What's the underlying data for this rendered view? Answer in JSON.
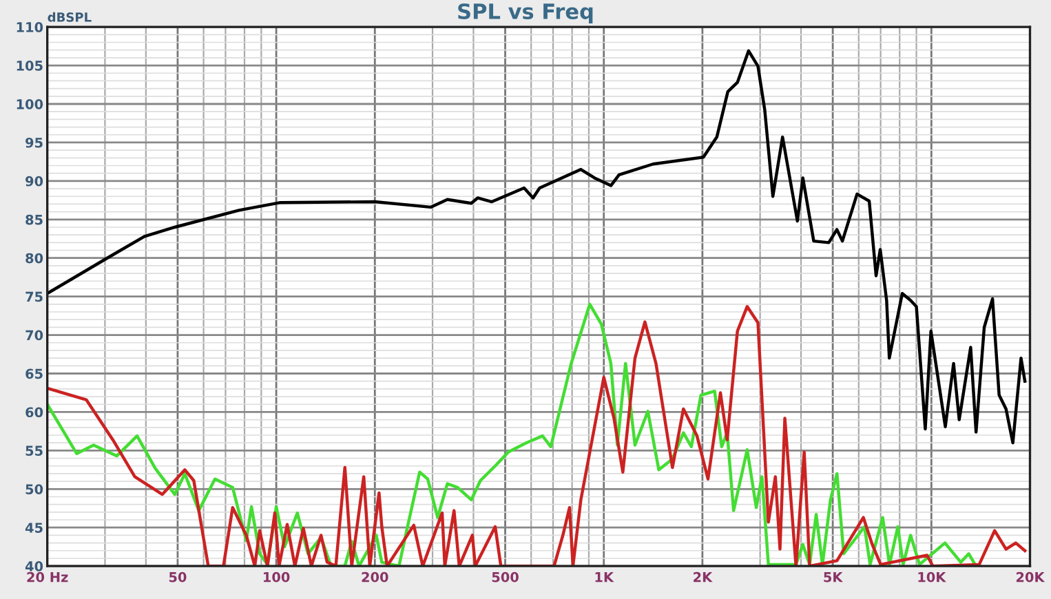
{
  "chart_data": {
    "type": "line",
    "title": "SPL vs Freq",
    "ylabel": "dBSPL",
    "log": "x",
    "grid": true,
    "marker": "none",
    "line_style": "solid",
    "xlim": [
      20,
      20000
    ],
    "ylim": [
      40,
      110
    ],
    "xticks": [
      {
        "value": 20,
        "label": "20 Hz"
      },
      50,
      100,
      200,
      500,
      {
        "value": 1000,
        "label": "1K"
      },
      {
        "value": 2000,
        "label": "2K"
      },
      {
        "value": 5000,
        "label": "5K"
      },
      {
        "value": 10000,
        "label": "10K"
      },
      {
        "value": 20000,
        "label": "20K"
      }
    ],
    "yticks": [
      40,
      45,
      50,
      55,
      60,
      65,
      70,
      75,
      80,
      85,
      90,
      95,
      100,
      105,
      110
    ],
    "series": [
      {
        "color": "#000000",
        "x": [
          20,
          30.5,
          39.6,
          49,
          77,
          103,
          200,
          296,
          333,
          394,
          412,
          455,
          571,
          608,
          637,
          851,
          937,
          1051,
          1113,
          1414,
          2014,
          2213,
          2391,
          2558,
          2767,
          2955,
          3100,
          3282,
          3513,
          3900,
          4052,
          4373,
          4860,
          5148,
          5350,
          5930,
          6460,
          6780,
          6980,
          7300,
          7440,
          8150,
          8640,
          9000,
          9580,
          9970,
          11030,
          11690,
          12160,
          13180,
          13690,
          14500,
          15370,
          16100,
          16900,
          17730,
          18780,
          19300
        ],
        "values": [
          75.4,
          80,
          82.8,
          84,
          86.2,
          87.2,
          87.3,
          86.6,
          87.6,
          87.1,
          87.8,
          87.3,
          89.1,
          87.8,
          89.1,
          91.5,
          90.4,
          89.4,
          90.8,
          92.2,
          93.1,
          95.7,
          101.6,
          102.8,
          106.9,
          104.9,
          99.2,
          88.0,
          95.7,
          84.8,
          90.4,
          82.2,
          82.0,
          83.7,
          82.2,
          88.3,
          87.4,
          77.7,
          81.1,
          74.5,
          67.0,
          75.4,
          74.5,
          73.7,
          57.8,
          70.5,
          58.1,
          66.3,
          59.0,
          68.4,
          57.4,
          71.0,
          74.7,
          62.2,
          60.4,
          56.0,
          67.0,
          64.0
        ]
      },
      {
        "color": "#44dd33",
        "x": [
          20,
          24.6,
          27.7,
          32.6,
          37.6,
          42.7,
          49,
          52.6,
          58,
          65,
          73.6,
          81,
          84,
          89,
          94,
          100,
          106,
          116,
          125,
          137,
          147,
          162,
          170,
          179,
          202,
          210,
          237,
          251,
          274,
          290,
          311,
          333,
          358,
          394,
          420,
          466,
          511,
          580,
          650,
          689,
          795,
          906,
          983,
          1051,
          1100,
          1165,
          1245,
          1363,
          1472,
          1620,
          1750,
          1850,
          1980,
          2180,
          2290,
          2380,
          2490,
          2740,
          2920,
          3040,
          3180,
          3860,
          4050,
          4250,
          4450,
          4650,
          4920,
          5150,
          5400,
          6250,
          6500,
          7100,
          7450,
          7900,
          8200,
          8640,
          9200,
          11000,
          12300,
          13000,
          13600
        ],
        "values": [
          61.0,
          54.6,
          55.7,
          54.3,
          56.9,
          52.7,
          49.3,
          52.0,
          47.2,
          51.3,
          50.2,
          43.3,
          47.7,
          41.6,
          40.2,
          47.7,
          42.5,
          46.9,
          41.6,
          43.7,
          40,
          40,
          43.2,
          40,
          44.0,
          40.5,
          40,
          44.9,
          52.2,
          51.3,
          46.3,
          50.7,
          50.2,
          48.6,
          51.1,
          53.0,
          54.8,
          56.0,
          56.9,
          55.5,
          66.3,
          74.0,
          71.4,
          66.3,
          55.7,
          66.3,
          55.7,
          60.1,
          52.5,
          53.9,
          57.3,
          55.5,
          62.2,
          62.7,
          55.5,
          57.3,
          47.2,
          55.1,
          47.6,
          51.6,
          40.2,
          40.2,
          42.8,
          40.2,
          46.7,
          40.2,
          48.6,
          52.0,
          41.6,
          45.1,
          40.2,
          46.3,
          40.2,
          45.1,
          40.2,
          44.0,
          40.2,
          43.0,
          40.5,
          41.6,
          40.2
        ]
      },
      {
        "color": "#cc2222",
        "x": [
          20,
          26.3,
          31.7,
          37,
          44.9,
          52.6,
          56,
          62,
          69,
          73.6,
          81,
          86,
          89,
          94,
          99,
          102,
          108,
          114,
          121,
          128,
          137,
          143,
          152,
          162,
          170,
          185,
          193,
          206,
          210,
          218,
          263,
          280,
          321,
          327,
          349,
          362,
          397,
          405,
          466,
          485,
          705,
          750,
          786,
          805,
          851,
          1000,
          1074,
          1143,
          1245,
          1335,
          1443,
          1620,
          1750,
          1925,
          2080,
          2270,
          2380,
          2558,
          2740,
          2955,
          3180,
          3340,
          3450,
          3570,
          3860,
          4090,
          4250,
          5150,
          6200,
          6600,
          7000,
          9700,
          10100,
          14000,
          15600,
          16900,
          18100,
          19300
        ],
        "values": [
          63.1,
          61.6,
          56.4,
          51.6,
          49.3,
          52.5,
          51.1,
          40,
          40,
          47.6,
          44.0,
          40,
          44.6,
          40,
          46.9,
          40,
          45.4,
          40,
          44.9,
          40,
          44.0,
          40.5,
          40,
          52.8,
          40,
          51.6,
          40,
          49.5,
          45.1,
          40,
          45.3,
          40,
          46.9,
          40,
          47.2,
          40,
          44.0,
          40,
          45.1,
          40,
          40,
          44.0,
          47.6,
          40,
          48.6,
          64.5,
          59.2,
          52.2,
          67.0,
          71.7,
          66.3,
          52.8,
          60.4,
          56.9,
          51.3,
          62.5,
          56.4,
          70.5,
          73.7,
          71.6,
          45.7,
          51.6,
          42.2,
          59.2,
          40,
          54.8,
          40,
          40.7,
          46.3,
          42.8,
          40.2,
          41.4,
          40,
          40.2,
          44.6,
          42.2,
          43.0,
          42.0
        ]
      }
    ]
  }
}
